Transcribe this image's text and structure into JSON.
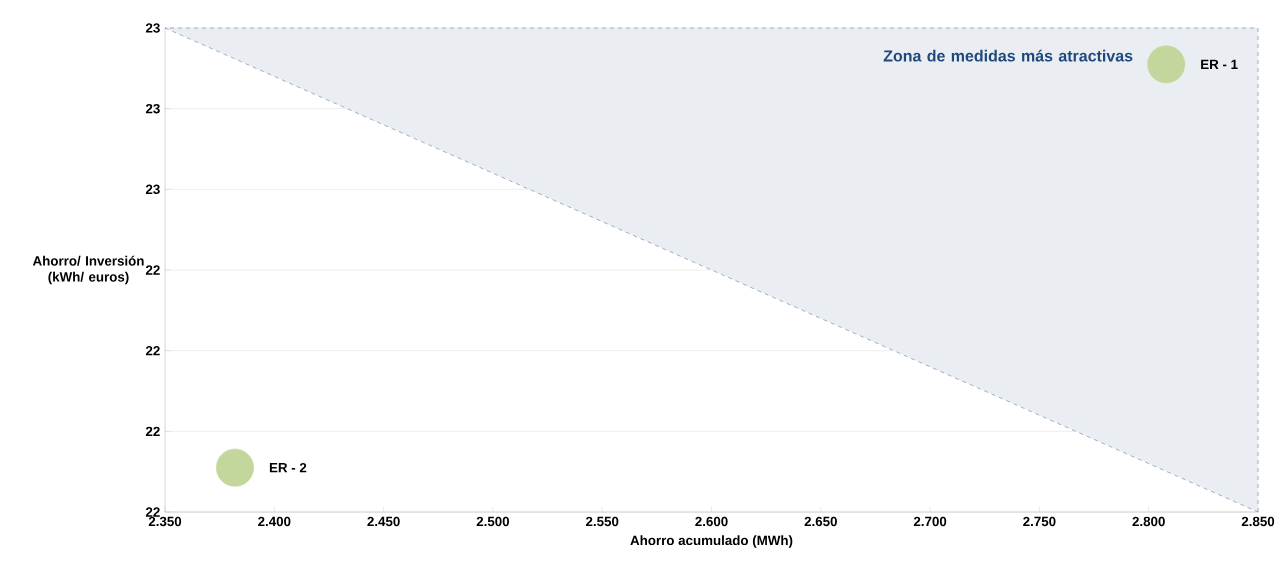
{
  "chart_data": {
    "type": "bubble",
    "xlabel": "Ahorro acumulado (MWh)",
    "ylabel": "Ahorro/ Inversión (kWh/ euros)",
    "xlim": [
      2350,
      2850
    ],
    "xticks": [
      {
        "value": 2350,
        "label": "2.350"
      },
      {
        "value": 2400,
        "label": "2.400"
      },
      {
        "value": 2450,
        "label": "2.450"
      },
      {
        "value": 2500,
        "label": "2.500"
      },
      {
        "value": 2550,
        "label": "2.550"
      },
      {
        "value": 2600,
        "label": "2.600"
      },
      {
        "value": 2650,
        "label": "2.650"
      },
      {
        "value": 2700,
        "label": "2.700"
      },
      {
        "value": 2750,
        "label": "2.750"
      },
      {
        "value": 2800,
        "label": "2.800"
      },
      {
        "value": 2850,
        "label": "2.850"
      }
    ],
    "ylim": [
      22.1,
      22.7
    ],
    "yticks": [
      {
        "value": 22.1,
        "label": "22"
      },
      {
        "value": 22.2,
        "label": "22"
      },
      {
        "value": 22.3,
        "label": "22"
      },
      {
        "value": 22.4,
        "label": "22"
      },
      {
        "value": 22.5,
        "label": "23"
      },
      {
        "value": 22.6,
        "label": "23"
      },
      {
        "value": 22.7,
        "label": "23"
      }
    ],
    "grid": "y",
    "annotations": [
      "Zona de medidas más atractivas",
      {
        "text": "ER - 1",
        "x": 2808,
        "y": 22.655
      },
      {
        "text": "ER - 2",
        "x": 2382,
        "y": 22.155
      }
    ],
    "series": [
      {
        "type": "line",
        "color": "#4f6f9f",
        "line_style": "dashed",
        "x": [
          2350,
          2850
        ],
        "values": [
          22.7,
          22.1
        ],
        "lower": [
          22.7,
          22.1
        ],
        "upper": [
          22.7,
          22.7
        ]
      },
      {
        "color": "#c3d69b",
        "x": [
          2808,
          2382
        ],
        "values": [
          22.655,
          22.155
        ],
        "sizes": [
          1,
          1
        ]
      }
    ]
  }
}
